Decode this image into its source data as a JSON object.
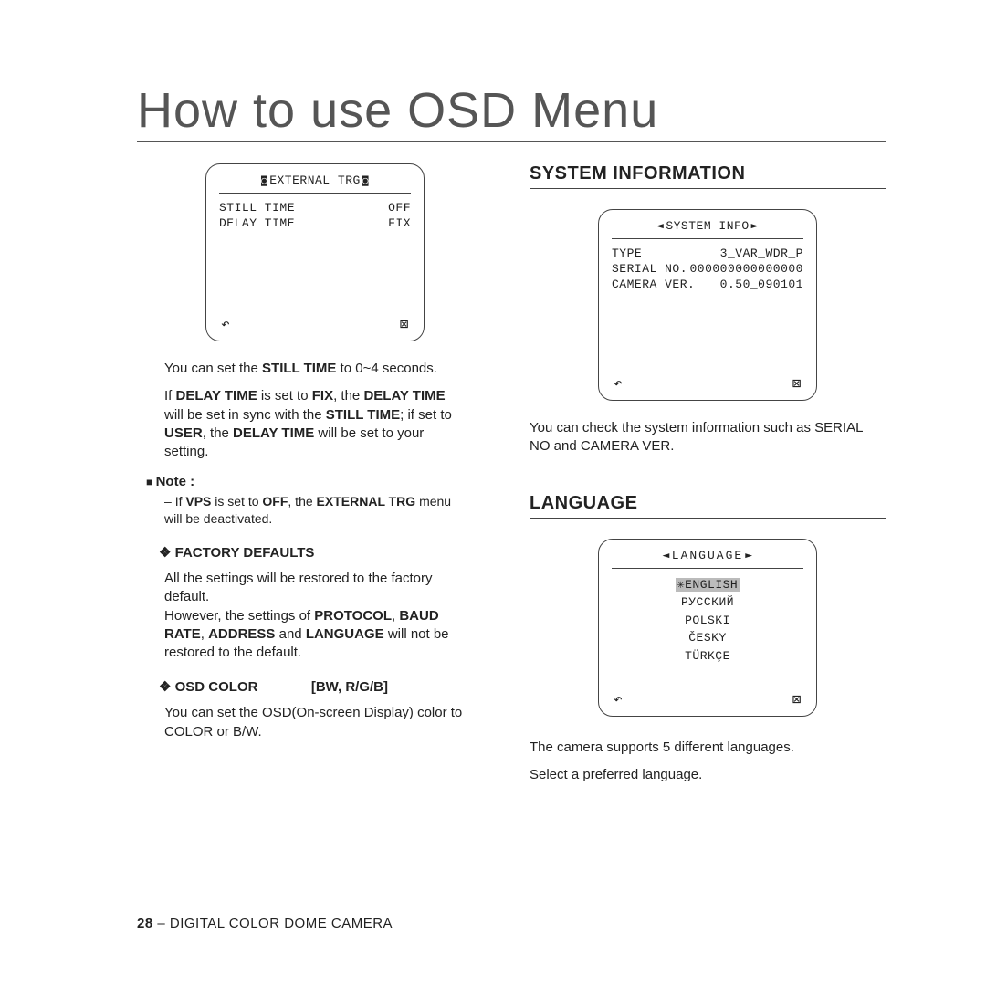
{
  "page": {
    "title": "How to use OSD Menu",
    "footer_page": "28",
    "footer_text": " – DIGITAL COLOR DOME CAMERA"
  },
  "left": {
    "osd1": {
      "header_left_glyph": "◙",
      "header_text": "EXTERNAL TRG",
      "header_right_glyph": "◙",
      "rows": [
        {
          "label": "STILL TIME",
          "value": "OFF"
        },
        {
          "label": "DELAY TIME",
          "value": "FIX"
        }
      ],
      "back_glyph": "↶",
      "close_glyph": "⊠"
    },
    "para1_pre": "You can set the ",
    "para1_bold": "STILL TIME",
    "para1_post": " to 0~4 seconds.",
    "para2": "If <b>DELAY TIME</b> is set to <b>FIX</b>, the <b>DELAY TIME</b> will be set in sync with the <b>STILL TIME</b>; if set to <b>USER</b>, the <b>DELAY TIME</b> will be set to your setting.",
    "note_label": "Note :",
    "note_body": "If <b>VPS</b> is set to <b>OFF</b>, the <b>EXTERNAL TRG</b> menu will be deactivated.",
    "factory_hdr": "FACTORY DEFAULTS",
    "factory_body": "All the settings will be restored to the factory default.<br>However, the settings of <b>PROTOCOL</b>, <b>BAUD RATE</b>, <b>ADDRESS</b> and <b>LANGUAGE</b> will not be restored to the default.",
    "osdcolor_hdr": "OSD COLOR",
    "osdcolor_val": "[BW, R/G/B]",
    "osdcolor_body": "You can set the OSD(On-screen Display) color to COLOR or B/W."
  },
  "right": {
    "sysinfo_hdr": "SYSTEM INFORMATION",
    "osd2": {
      "header_left_glyph": "◄",
      "header_text": "SYSTEM INFO",
      "header_right_glyph": "►",
      "rows": [
        {
          "label": "TYPE",
          "value": "3_VAR_WDR_P"
        },
        {
          "label": "SERIAL NO.",
          "value": "000000000000000"
        },
        {
          "label": "CAMERA VER.",
          "value": "0.50_090101"
        }
      ],
      "back_glyph": "↶",
      "close_glyph": "⊠"
    },
    "sysinfo_body": "You can check the system information such as SERIAL NO and CAMERA VER.",
    "lang_hdr": "LANGUAGE",
    "osd3": {
      "header_left_glyph": "◄",
      "header_text": "LANGUAGE",
      "header_right_glyph": "►",
      "selected_glyph": "✳",
      "items": [
        "ENGLISH",
        "РУССКИЙ",
        "POLSKI",
        "ČESKY",
        "TÜRKÇE"
      ],
      "back_glyph": "↶",
      "close_glyph": "⊠"
    },
    "lang_body1": "The camera supports 5 different languages.",
    "lang_body2": "Select a preferred language."
  }
}
